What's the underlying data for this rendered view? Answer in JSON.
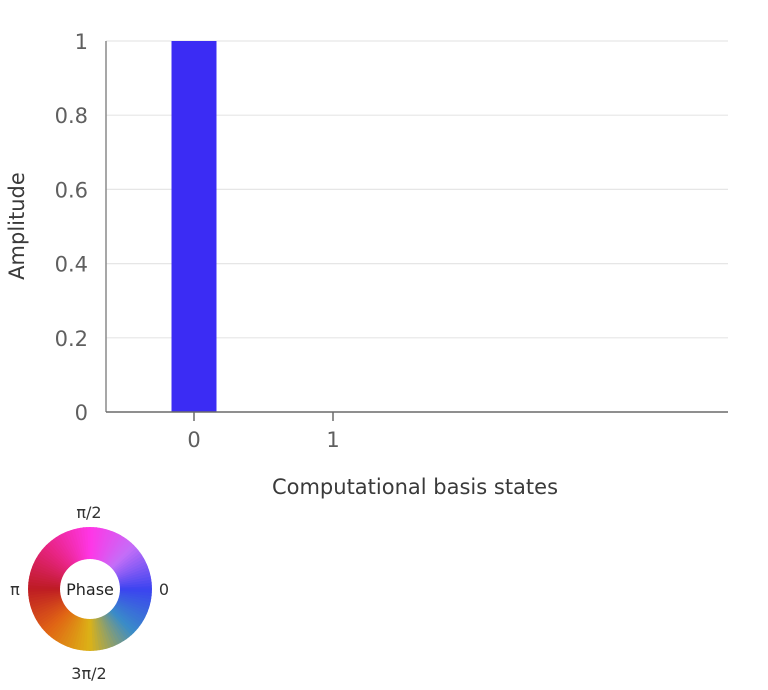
{
  "chart_data": {
    "type": "bar",
    "categories": [
      "0",
      "1"
    ],
    "values": [
      1,
      0
    ],
    "ylabel": "Amplitude",
    "xlabel": "Computational basis states",
    "ylim": [
      0,
      1
    ],
    "yticks": [
      "0",
      "0.2",
      "0.4",
      "0.6",
      "0.8",
      "1"
    ],
    "grid": true,
    "bar_color": "#3b2cf4"
  },
  "phase_legend": {
    "center_label": "Phase",
    "label_top": "π/2",
    "label_right": "0",
    "label_bottom": "3π/2",
    "label_left": "π"
  }
}
